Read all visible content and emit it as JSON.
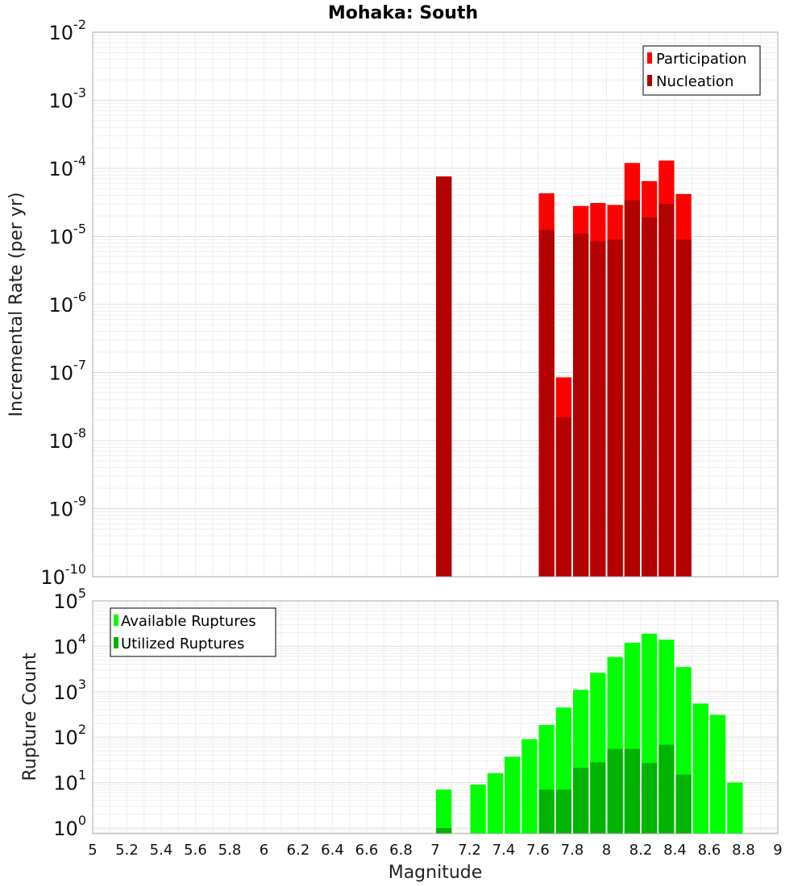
{
  "title": "Mohaka: South",
  "colors": {
    "participation": "#ff0000",
    "nucleation": "#b30000",
    "available": "#00ff00",
    "utilized": "#00b300"
  },
  "chart_data": [
    {
      "type": "bar",
      "title": "Mohaka: South",
      "xlabel": "Magnitude",
      "ylabel": "Incremental Rate (per yr)",
      "yscale": "log",
      "xlim": [
        5,
        9
      ],
      "ylim": [
        1e-10,
        0.01
      ],
      "grid": true,
      "legend_position": "top-right",
      "x": [
        7.05,
        7.65,
        7.75,
        7.85,
        7.95,
        8.05,
        8.15,
        8.25,
        8.35,
        8.45
      ],
      "series": [
        {
          "name": "Participation",
          "values": [
            7.6e-05,
            4.3e-05,
            8.5e-08,
            2.8e-05,
            3.1e-05,
            2.9e-05,
            0.00012,
            6.5e-05,
            0.00013,
            4.2e-05
          ]
        },
        {
          "name": "Nucleation",
          "values": [
            7.6e-05,
            1.25e-05,
            2.2e-08,
            1.1e-05,
            8.5e-06,
            9e-06,
            3.4e-05,
            1.9e-05,
            3e-05,
            9e-06
          ]
        }
      ]
    },
    {
      "type": "bar",
      "xlabel": "Magnitude",
      "ylabel": "Rupture Count",
      "yscale": "log",
      "xlim": [
        5,
        9
      ],
      "ylim": [
        0.75,
        100000.0
      ],
      "grid": true,
      "legend_position": "top-left",
      "x_ticks": [
        "5",
        "5.2",
        "5.4",
        "5.6",
        "5.8",
        "6",
        "6.2",
        "6.4",
        "6.6",
        "6.8",
        "7",
        "7.2",
        "7.4",
        "7.6",
        "7.8",
        "8",
        "8.2",
        "8.4",
        "8.6",
        "8.8",
        "9"
      ],
      "x": [
        7.05,
        7.25,
        7.35,
        7.45,
        7.55,
        7.65,
        7.75,
        7.85,
        7.95,
        8.05,
        8.15,
        8.25,
        8.35,
        8.45,
        8.55,
        8.65,
        8.75
      ],
      "series": [
        {
          "name": "Available Ruptures",
          "values": [
            7,
            9,
            16,
            37,
            90,
            185,
            450,
            1100,
            2600,
            5800,
            12000,
            19000,
            14000,
            3500,
            550,
            310,
            10
          ]
        },
        {
          "name": "Utilized Ruptures",
          "values": [
            1,
            0,
            0,
            0,
            0,
            7,
            7,
            21,
            28,
            55,
            55,
            27,
            68,
            15,
            0,
            0,
            0
          ]
        }
      ]
    }
  ]
}
